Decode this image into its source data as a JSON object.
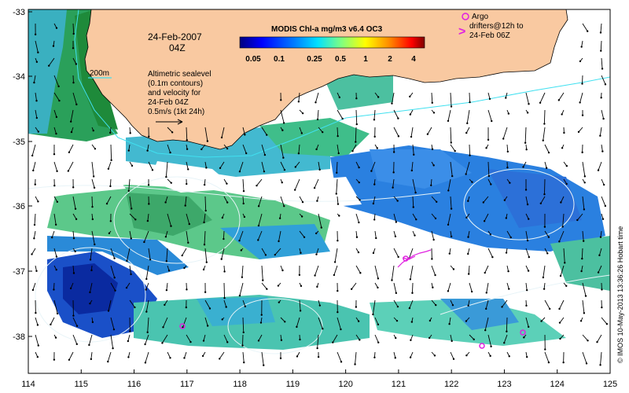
{
  "header": {
    "date": "24-Feb-2007",
    "time": "04Z"
  },
  "colorbar": {
    "title": "MODIS Chl-a mg/m3 v6.4 OC3",
    "ticks": [
      "0.05",
      "0.1",
      "0.25",
      "0.5",
      "1",
      "2",
      "4"
    ],
    "colors": [
      "#00007f",
      "#0000ff",
      "#0080ff",
      "#00ffff",
      "#80ff80",
      "#ffff00",
      "#ff8000",
      "#ff0000",
      "#7f0000"
    ]
  },
  "labels": {
    "isobath": "200m",
    "sealevel_lines": [
      "Altimetric sealevel",
      "(0.1m contours)",
      "and velocity for",
      "24-Feb 04Z",
      "0.5m/s (1kt 24h)"
    ],
    "argo_lines": [
      "Argo",
      "drifters@12h to",
      "24-Feb 06Z"
    ],
    "argo_marker": ">",
    "credit": "© IMOS 10-May-2013 13:36:26 Hobart time"
  },
  "axes": {
    "xticks": [
      "114",
      "115",
      "116",
      "117",
      "118",
      "119",
      "120",
      "121",
      "122",
      "123",
      "124",
      "125"
    ],
    "yticks": [
      "-33",
      "-34",
      "-35",
      "-36",
      "-37",
      "-38"
    ]
  },
  "colors": {
    "land": "#f9c9a1",
    "coast_line": "#000000",
    "isobath": "#40e0f0",
    "contour": "#e8f4f8",
    "argo": "#e020e0"
  }
}
